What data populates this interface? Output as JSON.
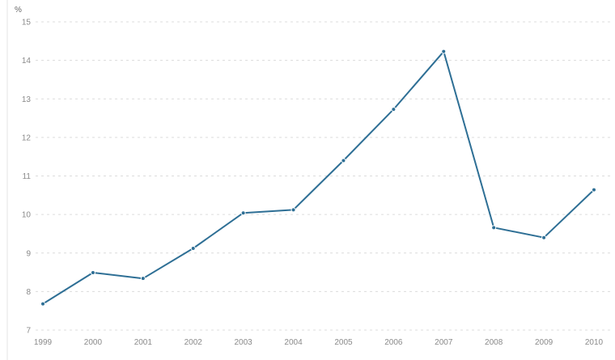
{
  "chart_data": {
    "type": "line",
    "unit_label": "%",
    "x": [
      "1999",
      "2000",
      "2001",
      "2002",
      "2003",
      "2004",
      "2005",
      "2006",
      "2007",
      "2008",
      "2009",
      "2010"
    ],
    "series": [
      {
        "color": "#2e6f95",
        "values": [
          7.68,
          8.49,
          8.34,
          9.12,
          10.04,
          10.12,
          11.4,
          12.73,
          14.23,
          9.66,
          9.4,
          10.64
        ]
      }
    ],
    "ylim": [
      7,
      15
    ],
    "yticks": [
      "7",
      "8",
      "9",
      "10",
      "11",
      "12",
      "13",
      "14",
      "15"
    ],
    "grid": true,
    "legend": "none"
  }
}
